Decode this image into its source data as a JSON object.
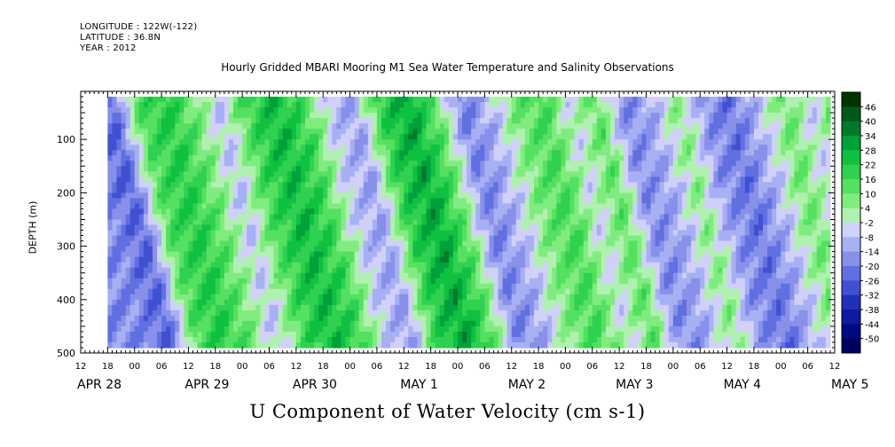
{
  "header": {
    "longitude": "LONGITUDE : 122W(-122)",
    "latitude": "LATITUDE : 36.8N",
    "year": "YEAR : 2012"
  },
  "title": "Hourly Gridded MBARI Mooring M1 Sea Water Temperature and Salinity Observations",
  "bottom_title": "U Component of Water Velocity (cm s-1)",
  "chart_data": {
    "type": "heatmap",
    "variable": "U Component of Water Velocity (cm s-1)",
    "xlabel": "",
    "ylabel": "DEPTH (m)",
    "ylim": [
      500,
      10
    ],
    "yticks": [
      "100",
      "200",
      "300",
      "400",
      "500"
    ],
    "x_range_hours": [
      0,
      168
    ],
    "x_hour_ticks": [
      "12",
      "18",
      "00",
      "06",
      "12",
      "18",
      "00",
      "06",
      "12",
      "18",
      "00",
      "06",
      "12",
      "18",
      "00",
      "06",
      "12",
      "18",
      "00",
      "06",
      "12",
      "18",
      "00",
      "06",
      "12",
      "18",
      "00",
      "06",
      "12"
    ],
    "x_date_labels": [
      "APR 28",
      "APR 29",
      "APR 30",
      "MAY  1",
      "MAY  2",
      "MAY  3",
      "MAY  4",
      "MAY  5"
    ],
    "colorbar": {
      "labels": [
        "46",
        "40",
        "34",
        "28",
        "22",
        "16",
        "10",
        "4",
        "-2",
        "-8",
        "-14",
        "-20",
        "-26",
        "-32",
        "-38",
        "-44",
        "-50"
      ],
      "colors": [
        "#003300",
        "#00581a",
        "#007a2a",
        "#00a03a",
        "#10c040",
        "#30d050",
        "#55e060",
        "#80ec80",
        "#b0f0b0",
        "#d0d0f8",
        "#a8b0f4",
        "#8890ea",
        "#6070e0",
        "#4050d0",
        "#2030b8",
        "#101aa0",
        "#000a80",
        "#000060"
      ]
    },
    "bands_description": "alternating green (positive, eastward) and blue (negative, westward) diagonal bands across depth 20-490 m",
    "bands": [
      {
        "t": 0,
        "v": -18
      },
      {
        "t": 6,
        "v": -26
      },
      {
        "t": 12,
        "v": 14
      },
      {
        "t": 18,
        "v": 22
      },
      {
        "t": 24,
        "v": 10
      },
      {
        "t": 30,
        "v": -8
      },
      {
        "t": 36,
        "v": 16
      },
      {
        "t": 42,
        "v": 26
      },
      {
        "t": 48,
        "v": 18
      },
      {
        "t": 54,
        "v": -6
      },
      {
        "t": 60,
        "v": -14
      },
      {
        "t": 66,
        "v": 20
      },
      {
        "t": 72,
        "v": 30
      },
      {
        "t": 78,
        "v": 12
      },
      {
        "t": 84,
        "v": -20
      },
      {
        "t": 90,
        "v": -10
      },
      {
        "t": 96,
        "v": 8
      },
      {
        "t": 102,
        "v": 16
      },
      {
        "t": 108,
        "v": -4
      },
      {
        "t": 114,
        "v": 12
      },
      {
        "t": 120,
        "v": -18
      },
      {
        "t": 126,
        "v": -12
      },
      {
        "t": 132,
        "v": 6
      },
      {
        "t": 138,
        "v": -16
      },
      {
        "t": 144,
        "v": -22
      },
      {
        "t": 150,
        "v": -8
      },
      {
        "t": 156,
        "v": 10
      },
      {
        "t": 162,
        "v": -6
      },
      {
        "t": 168,
        "v": 18
      }
    ]
  }
}
